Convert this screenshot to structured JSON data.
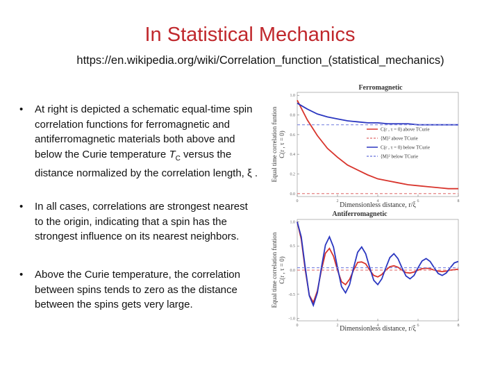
{
  "title": "In Statistical Mechanics",
  "url": "https://en.wikipedia.org/wiki/Correlation_function_(statistical_mechanics)",
  "bullets": [
    {
      "text": "At right  is depicted a schematic equal-time spin correlation functions for ferromagnetic and antiferromagnetic materials both above and below the Curie temperature ",
      "symbol": "T",
      "subscript": "C",
      "tail": "  versus the distance normalized by the correlation length, ξ ."
    },
    {
      "text": "In all cases, correlations are strongest nearest to the origin, indicating that a spin has the strongest influence on its nearest neighbors."
    },
    {
      "text": "Above the Curie temperature, the correlation between spins tends to zero as the distance between the spins gets very large."
    }
  ],
  "chart_data": [
    {
      "type": "line",
      "title": "Ferromagnetic",
      "xlabel": "Dimensionless distance, r/ξ",
      "ylabel": [
        "Equal time correlation funtion",
        "C(r , τ = 0)"
      ],
      "x": [
        0,
        0.5,
        1,
        1.5,
        2,
        2.5,
        3,
        3.5,
        4,
        4.5,
        5,
        5.5,
        6,
        6.5,
        7,
        7.5,
        8
      ],
      "xlim": [
        0,
        8
      ],
      "ylim": [
        -0.03,
        1.03
      ],
      "xticks": [
        0,
        2,
        4,
        6,
        8
      ],
      "yticks": [
        {
          "value": 0,
          "label": "0.0"
        },
        0.2,
        0.4,
        0.6,
        0.8,
        {
          "value": 1,
          "label": "1.0"
        }
      ],
      "legend": "center right",
      "series": [
        {
          "name": "C(r , τ = 0) above TCurie",
          "color": "#d8342c",
          "style": "solid",
          "values": [
            0.95,
            0.75,
            0.59,
            0.46,
            0.37,
            0.29,
            0.24,
            0.19,
            0.15,
            0.13,
            0.11,
            0.09,
            0.08,
            0.07,
            0.06,
            0.05,
            0.05
          ]
        },
        {
          "name": "⟨M⟩² above TCurie",
          "color": "#e58080",
          "style": "dashed",
          "level": 0
        },
        {
          "name": "C(r , τ = 0) below TCurie",
          "color": "#2a36c0",
          "style": "solid",
          "values": [
            0.92,
            0.86,
            0.81,
            0.78,
            0.76,
            0.74,
            0.73,
            0.72,
            0.72,
            0.71,
            0.71,
            0.71,
            0.7,
            0.7,
            0.7,
            0.7,
            0.7
          ]
        },
        {
          "name": "⟨M⟩² below TCurie",
          "color": "#7f88e0",
          "style": "dashed",
          "level": 0.7
        }
      ]
    },
    {
      "type": "line",
      "title": "Antiferromagnetic",
      "xlabel": "Dimensionless distance, r/ξ",
      "ylabel": [
        "Equal time correlation funtion",
        "C(r , τ = 0)"
      ],
      "x": [
        0,
        0.2,
        0.4,
        0.6,
        0.8,
        1,
        1.2,
        1.4,
        1.6,
        1.8,
        2,
        2.2,
        2.4,
        2.6,
        2.8,
        3,
        3.2,
        3.4,
        3.6,
        3.8,
        4,
        4.2,
        4.4,
        4.6,
        4.8,
        5,
        5.2,
        5.4,
        5.6,
        5.8,
        6,
        6.2,
        6.4,
        6.6,
        6.8,
        7,
        7.2,
        7.4,
        7.6,
        7.8,
        8
      ],
      "xlim": [
        0,
        8
      ],
      "ylim": [
        -1.05,
        1.05
      ],
      "xticks": [
        0,
        2,
        4,
        6,
        8
      ],
      "yticks": [
        {
          "value": -1,
          "label": "-1.0"
        },
        -0.5,
        {
          "value": 0,
          "label": "0.0"
        },
        0.5,
        {
          "value": 1,
          "label": "1.0"
        }
      ],
      "series": [
        {
          "color": "#d8342c",
          "style": "solid",
          "values": [
            1,
            0.64,
            0,
            -0.52,
            -0.67,
            -0.43,
            0,
            0.35,
            0.45,
            0.29,
            0,
            -0.24,
            -0.3,
            -0.19,
            0,
            0.16,
            0.17,
            0.13,
            0,
            -0.11,
            -0.14,
            -0.09,
            0,
            0.07,
            0.09,
            0.06,
            0,
            -0.05,
            -0.06,
            -0.04,
            0,
            0.03,
            0.04,
            0.03,
            0,
            -0.02,
            -0.03,
            -0.02,
            0,
            0.01,
            0.02
          ]
        },
        {
          "color": "#e58080",
          "style": "dashed",
          "level": 0
        },
        {
          "color": "#2a36c0",
          "style": "solid",
          "values": [
            1.0,
            0.69,
            0.05,
            -0.53,
            -0.73,
            -0.47,
            0.05,
            0.52,
            0.69,
            0.48,
            0.05,
            -0.34,
            -0.47,
            -0.3,
            0.05,
            0.37,
            0.48,
            0.34,
            0.05,
            -0.21,
            -0.3,
            -0.18,
            0.05,
            0.26,
            0.34,
            0.24,
            0.05,
            -0.12,
            -0.18,
            -0.11,
            0.05,
            0.19,
            0.24,
            0.18,
            0.05,
            -0.07,
            -0.11,
            -0.06,
            0.05,
            0.15,
            0.18
          ]
        },
        {
          "color": "#7f88e0",
          "style": "dashed",
          "level": 0.05
        }
      ]
    }
  ]
}
